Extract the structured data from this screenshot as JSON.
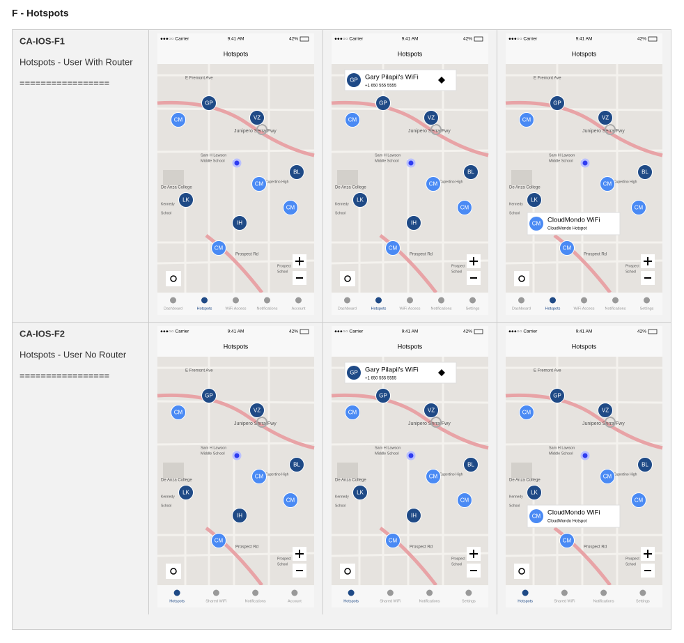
{
  "title": "F - Hotspots",
  "status_bar": {
    "carrier": "●●●○○ Carrier",
    "time": "9:41 AM",
    "battery": "42%"
  },
  "screen_title": "Hotspots",
  "map": {
    "markers": [
      "GP",
      "CM",
      "VZ",
      "BL",
      "CM",
      "LK",
      "CM",
      "IH",
      "CM"
    ],
    "labels": [
      "E Fremont Ave",
      "Sam H Lawson",
      "Middle School",
      "De Anza College",
      "Kennedy",
      "School",
      "Cupertino High",
      "Prospect Rd",
      "Prospect",
      "School",
      "Junipero Serra Fwy"
    ]
  },
  "popups": [
    {
      "icon": "GP",
      "title": "Gary Pilapil's WiFi",
      "subtitle": "+1 650 555 5555"
    },
    {
      "icon": "CM",
      "title": "CloudMondo WiFi",
      "subtitle": "CloudMondo Hotspot"
    }
  ],
  "rows": [
    {
      "id": "CA-IOS-F1",
      "description": "Hotspots - User With Router",
      "separator": "=================",
      "tabs": [
        [
          "Dashboard",
          "Hotspots",
          "WiFi Access",
          "Notifications",
          "Account"
        ],
        [
          "Dashboard",
          "Hotspots",
          "WiFi Access",
          "Notifications",
          "Settings"
        ],
        [
          "Dashboard",
          "Hotspots",
          "WiFi Access",
          "Notifications",
          "Settings"
        ]
      ]
    },
    {
      "id": "CA-IOS-F2",
      "description": "Hotspots - User No Router",
      "separator": "=================",
      "tabs": [
        [
          "Hotspots",
          "Shared WiFi",
          "Notifications",
          "Account"
        ],
        [
          "Hotspots",
          "Shared WiFi",
          "Notifications",
          "Settings"
        ],
        [
          "Hotspots",
          "Shared WiFi",
          "Notifications",
          "Settings"
        ]
      ]
    }
  ]
}
